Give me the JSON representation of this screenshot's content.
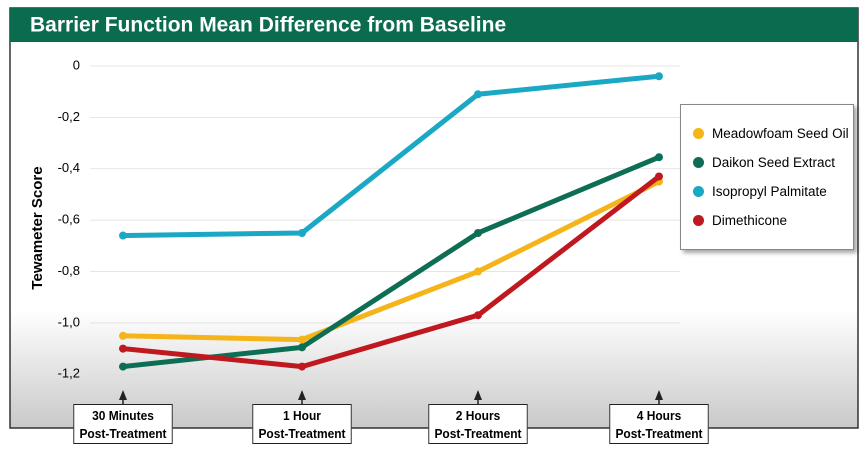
{
  "chart_data": {
    "type": "line",
    "title": "Barrier Function Mean Difference from Baseline",
    "y_label": "Tewameter Score",
    "categories": [
      "30 Minutes\nPost-Treatment",
      "1 Hour\nPost-Treatment",
      "2 Hours\nPost-Treatment",
      "4 Hours\nPost-Treatment"
    ],
    "series": [
      {
        "name": "Meadowfoam Seed Oil",
        "color": "#f5b41a",
        "values": [
          -1.05,
          -1.065,
          -0.8,
          -0.45
        ]
      },
      {
        "name": "Daikon Seed Extract",
        "color": "#0d6e55",
        "values": [
          -1.17,
          -1.095,
          -0.65,
          -0.355
        ]
      },
      {
        "name": "Isopropyl Palmitate",
        "color": "#1aa8c4",
        "values": [
          -0.66,
          -0.65,
          -0.11,
          -0.04
        ]
      },
      {
        "name": "Dimethicone",
        "color": "#c0181f",
        "values": [
          -1.1,
          -1.17,
          -0.97,
          -0.43
        ]
      }
    ],
    "ylim": [
      -1.3,
      0.07
    ],
    "yticks": [
      0,
      {
        "value": -0.2,
        "label": "-0,2"
      },
      {
        "value": -0.4,
        "label": "-0,4"
      },
      {
        "value": -0.6,
        "label": "-0,6"
      },
      {
        "value": -0.8,
        "label": "-0,8"
      },
      {
        "value": -1.0,
        "label": "-1,0"
      },
      {
        "value": -1.2,
        "label": "-1,2"
      }
    ],
    "grid": true,
    "legend": "right"
  }
}
